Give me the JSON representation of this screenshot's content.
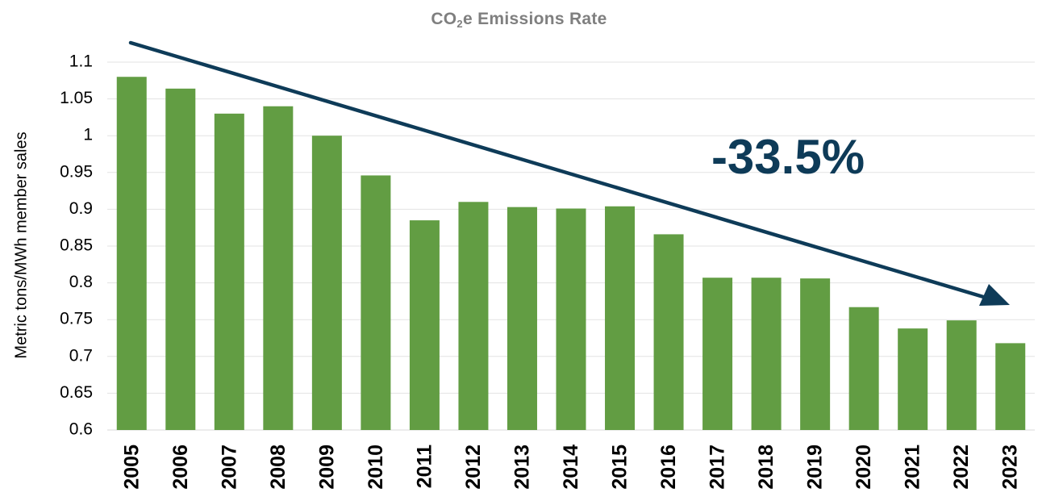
{
  "chart_data": {
    "type": "bar",
    "title": {
      "prefix": "CO",
      "subscript": "2",
      "suffix": "e Emissions Rate"
    },
    "xlabel": "",
    "ylabel": "Metric tons/MWh member sales",
    "ylim": [
      0.6,
      1.1
    ],
    "yticks": [
      "0.6",
      "0.65",
      "0.7",
      "0.75",
      "0.8",
      "0.85",
      "0.9",
      "0.95",
      "1",
      "1.05",
      "1.1"
    ],
    "grid": true,
    "legend": "none",
    "categories": [
      "2005",
      "2006",
      "2007",
      "2008",
      "2009",
      "2010",
      "2011",
      "2012",
      "2013",
      "2014",
      "2015",
      "2016",
      "2017",
      "2018",
      "2019",
      "2020",
      "2021",
      "2022",
      "2023"
    ],
    "values": [
      1.08,
      1.064,
      1.03,
      1.04,
      1.0,
      0.946,
      0.885,
      0.91,
      0.903,
      0.901,
      0.904,
      0.866,
      0.807,
      0.807,
      0.806,
      0.767,
      0.738,
      0.749,
      0.718
    ],
    "annotation": {
      "text": "-33.5%",
      "kind": "trend-arrow"
    }
  },
  "colors": {
    "bar": "#629d43",
    "arrow": "#0e3b58",
    "annotation": "#0e3b58",
    "grid": "#e3e3e3",
    "title": "#7f7f7f",
    "axis_text": "#000000"
  }
}
